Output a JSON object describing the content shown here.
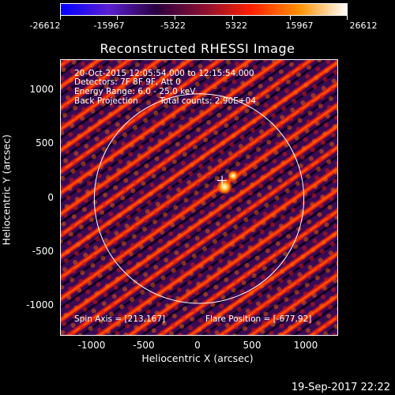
{
  "colorbar": {
    "ticks": [
      "-26612",
      "-15967",
      "-5322",
      "5322",
      "15967",
      "26612"
    ]
  },
  "title": "Reconstructed RHESSI Image",
  "info": {
    "time_range": "20-Oct-2015 12:05:54.000 to 12:15:54.000",
    "detectors": "Detectors: 7F 8F 9F, Att 0",
    "energy": "Energy Range: 6.0 - 25.0 keV",
    "method": "Back Projection",
    "counts": "Total counts: 2.90E+04",
    "spin_axis": "Spin Axis = [213,167]",
    "flare_position": "Flare Position = [-677,92]"
  },
  "axes": {
    "xlabel": "Heliocentric X (arcsec)",
    "ylabel": "Heliocentric Y (arcsec)",
    "xticks": [
      "-1000",
      "-500",
      "0",
      "500",
      "1000"
    ],
    "yticks": [
      "1000",
      "500",
      "0",
      "-500",
      "-1000"
    ],
    "xrange": [
      -1280,
      1280
    ],
    "yrange": [
      -1260,
      1280
    ]
  },
  "solar_disk_radius_arcsec": 970,
  "marker_position_arcsec": [
    213,
    167
  ],
  "timestamp": "19-Sep-2017 22:22",
  "colors": {
    "colorbar_gradient": [
      "#0000ff",
      "#5a1fd0",
      "#2a0040",
      "#8a1030",
      "#ff2000",
      "#ff9000",
      "#ffffff"
    ]
  }
}
